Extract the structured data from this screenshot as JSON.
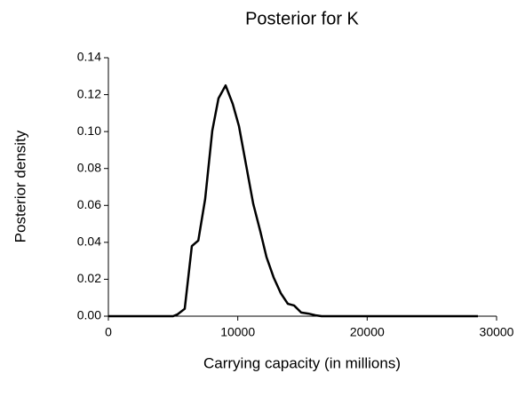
{
  "chart_data": {
    "type": "line",
    "title": "Posterior for K",
    "x_label": "Carrying capacity (in millions)",
    "y_label": "Posterior density",
    "x": [
      0,
      5000,
      5350,
      5900,
      6450,
      6950,
      7480,
      8030,
      8510,
      9060,
      9610,
      10090,
      10640,
      11190,
      11740,
      12220,
      12770,
      13320,
      13870,
      14350,
      14900,
      15450,
      16000,
      16480,
      28560
    ],
    "series": [
      {
        "name": "Posterior",
        "color": "#000000",
        "values": [
          0,
          0,
          0.001,
          0.004,
          0.038,
          0.041,
          0.0635,
          0.1005,
          0.118,
          0.125,
          0.115,
          0.103,
          0.082,
          0.061,
          0.046,
          0.032,
          0.021,
          0.0125,
          0.0067,
          0.0058,
          0.002,
          0.0014,
          0.0005,
          0,
          0
        ]
      }
    ],
    "xlim": [
      0,
      30000
    ],
    "xticks": [
      0,
      10000,
      20000,
      30000
    ],
    "ylim": [
      0,
      0.14
    ],
    "yticks": [
      {
        "value": 0,
        "label": "0.00"
      },
      {
        "value": 0.02,
        "label": "0.02"
      },
      {
        "value": 0.04,
        "label": "0.04"
      },
      {
        "value": 0.06,
        "label": "0.06"
      },
      {
        "value": 0.08,
        "label": "0.08"
      },
      {
        "value": 0.1,
        "label": "0.10"
      },
      {
        "value": 0.12,
        "label": "0.12"
      },
      {
        "value": 0.14,
        "label": "0.14"
      }
    ],
    "grid": false
  }
}
